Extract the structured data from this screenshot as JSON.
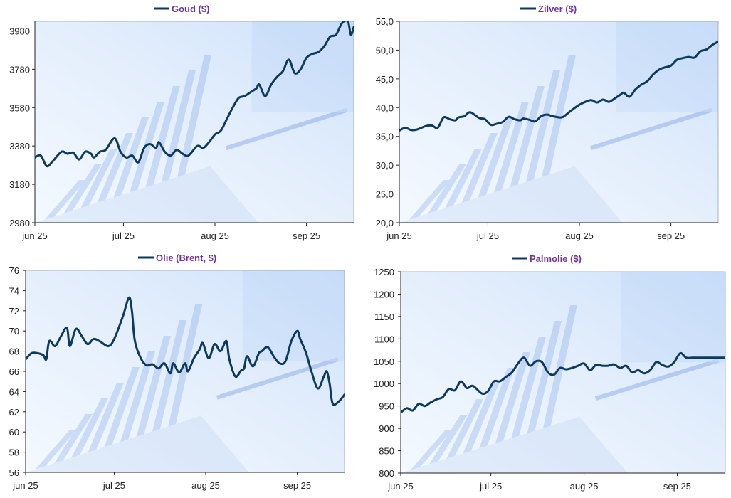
{
  "colors": {
    "line": "#0d3a5c",
    "title": "#7030a0",
    "axis": "#222222",
    "bg_light": "#f4f9ff",
    "bg_blue": "#cfe2fb",
    "bg_bar": "#6f9be6"
  },
  "chart_data": [
    {
      "type": "line",
      "title": "Goud ($)",
      "legend_label": "Goud ($)",
      "x_ticks": [
        "jun 25",
        "jul 25",
        "aug 25",
        "sep 25"
      ],
      "x_tick_pos": [
        0,
        30,
        61,
        92
      ],
      "x_range": [
        0,
        108
      ],
      "y_ticks": [
        "2980",
        "3180",
        "3380",
        "3580",
        "3780",
        "3980"
      ],
      "ylim": [
        2980,
        4030
      ],
      "series": [
        {
          "name": "Goud ($)",
          "x": [
            0,
            2,
            4,
            6,
            9,
            11,
            13,
            15,
            17,
            19,
            20,
            22,
            24,
            27,
            29,
            31,
            33,
            35,
            37,
            39,
            41,
            42,
            44,
            46,
            48,
            50,
            52,
            55,
            57,
            59,
            61,
            63,
            65,
            67,
            69,
            71,
            73,
            75,
            76,
            78,
            80,
            82,
            84,
            86,
            88,
            90,
            92,
            94,
            96,
            98,
            100,
            102,
            104,
            106,
            107,
            108
          ],
          "values": [
            3320,
            3330,
            3275,
            3300,
            3350,
            3340,
            3345,
            3310,
            3350,
            3340,
            3320,
            3350,
            3360,
            3420,
            3350,
            3320,
            3330,
            3295,
            3370,
            3390,
            3370,
            3400,
            3350,
            3330,
            3360,
            3340,
            3330,
            3380,
            3370,
            3400,
            3440,
            3460,
            3520,
            3580,
            3630,
            3640,
            3660,
            3680,
            3700,
            3640,
            3700,
            3740,
            3770,
            3830,
            3760,
            3780,
            3840,
            3860,
            3870,
            3900,
            3950,
            3960,
            4020,
            4030,
            3960,
            4000
          ]
        }
      ]
    },
    {
      "type": "line",
      "title": "Zilver ($)",
      "legend_label": "Zilver ($)",
      "x_ticks": [
        "jun 25",
        "jul 25",
        "aug 25",
        "sep 25"
      ],
      "x_tick_pos": [
        0,
        30,
        61,
        92
      ],
      "x_range": [
        0,
        108
      ],
      "y_ticks": [
        "20,0",
        "25,0",
        "30,0",
        "35,0",
        "40,0",
        "45,0",
        "50,0",
        "55,0"
      ],
      "ylim": [
        20,
        55
      ],
      "series": [
        {
          "name": "Zilver ($)",
          "x": [
            0,
            2,
            4,
            6,
            9,
            11,
            13,
            15,
            17,
            19,
            20,
            22,
            24,
            27,
            29,
            31,
            33,
            35,
            37,
            39,
            41,
            42,
            44,
            46,
            48,
            50,
            52,
            55,
            57,
            59,
            61,
            63,
            65,
            67,
            69,
            71,
            73,
            75,
            76,
            78,
            80,
            82,
            84,
            86,
            88,
            90,
            92,
            94,
            96,
            98,
            100,
            102,
            104,
            106,
            107,
            108
          ],
          "values": [
            36.0,
            36.5,
            36.1,
            36.2,
            36.8,
            36.9,
            36.5,
            38.3,
            38.0,
            37.8,
            38.3,
            38.5,
            39.2,
            38.2,
            38.0,
            37.0,
            37.2,
            37.5,
            38.4,
            38.0,
            37.8,
            38.1,
            37.9,
            37.6,
            38.5,
            38.8,
            38.5,
            38.3,
            39.0,
            39.8,
            40.5,
            41.0,
            41.3,
            40.9,
            41.4,
            41.0,
            41.6,
            42.3,
            42.6,
            41.9,
            43.2,
            44.0,
            44.6,
            45.8,
            46.6,
            47.0,
            47.3,
            48.3,
            48.6,
            48.8,
            48.7,
            49.8,
            50.1,
            50.9,
            51.2,
            51.5
          ]
        }
      ]
    },
    {
      "type": "line",
      "title": "Olie (Brent, $)",
      "legend_label": "Olie (Brent, $)",
      "x_ticks": [
        "jun 25",
        "jul 25",
        "aug 25",
        "sep 25"
      ],
      "x_tick_pos": [
        0,
        30,
        61,
        92
      ],
      "x_range": [
        0,
        108
      ],
      "y_ticks": [
        "56",
        "58",
        "60",
        "62",
        "64",
        "66",
        "68",
        "70",
        "72",
        "74",
        "76"
      ],
      "ylim": [
        56,
        76
      ],
      "series": [
        {
          "name": "Olie (Brent, $)",
          "x": [
            0,
            2,
            4,
            6,
            7,
            8,
            10,
            12,
            14,
            15,
            17,
            19,
            21,
            23,
            25,
            28,
            30,
            33,
            35,
            36,
            37,
            39,
            41,
            43,
            45,
            47,
            49,
            50,
            52,
            54,
            55,
            57,
            59,
            60,
            62,
            64,
            66,
            68,
            69,
            71,
            73,
            74,
            75,
            77,
            79,
            80,
            82,
            84,
            86,
            88,
            90,
            92,
            93,
            95,
            97,
            99,
            101,
            102,
            103,
            104,
            106,
            108
          ],
          "values": [
            67.2,
            67.8,
            67.8,
            67.6,
            67.2,
            69.0,
            68.5,
            69.5,
            70.3,
            68.5,
            70.2,
            69.5,
            68.7,
            69.2,
            69.0,
            68.5,
            69.2,
            71.5,
            73.3,
            72.0,
            69.0,
            67.3,
            66.6,
            66.7,
            66.3,
            66.8,
            65.8,
            66.8,
            65.9,
            66.8,
            66.0,
            67.3,
            68.2,
            68.8,
            67.3,
            68.7,
            68.0,
            69.0,
            67.2,
            65.5,
            66.1,
            66.3,
            67.5,
            66.5,
            67.8,
            68.0,
            68.4,
            67.5,
            66.8,
            67.0,
            69.0,
            70.0,
            69.2,
            67.8,
            65.8,
            64.3,
            65.5,
            66.0,
            64.7,
            62.8,
            63.0,
            63.7
          ]
        }
      ]
    },
    {
      "type": "line",
      "title": "Palmolie ($)",
      "legend_label": "Palmolie ($)",
      "x_ticks": [
        "jun 25",
        "jul 25",
        "aug 25",
        "sep 25"
      ],
      "x_tick_pos": [
        0,
        30,
        61,
        92
      ],
      "x_range": [
        0,
        108
      ],
      "y_ticks": [
        "800",
        "850",
        "900",
        "950",
        "1000",
        "1050",
        "1100",
        "1150",
        "1200",
        "1250"
      ],
      "ylim": [
        800,
        1250
      ],
      "series": [
        {
          "name": "Palmolie ($)",
          "x": [
            0,
            2,
            4,
            6,
            8,
            10,
            12,
            14,
            16,
            18,
            20,
            22,
            24,
            27,
            29,
            31,
            33,
            35,
            37,
            39,
            41,
            43,
            45,
            47,
            49,
            51,
            53,
            55,
            57,
            59,
            61,
            63,
            65,
            67,
            69,
            71,
            73,
            75,
            77,
            79,
            81,
            83,
            85,
            87,
            89,
            91,
            93,
            95,
            97,
            99,
            101,
            103,
            105,
            107,
            108
          ],
          "values": [
            935,
            945,
            940,
            955,
            950,
            958,
            965,
            970,
            988,
            985,
            1005,
            990,
            995,
            978,
            983,
            1005,
            1005,
            1015,
            1025,
            1045,
            1058,
            1040,
            1050,
            1048,
            1025,
            1020,
            1035,
            1032,
            1035,
            1040,
            1045,
            1030,
            1042,
            1040,
            1040,
            1043,
            1035,
            1040,
            1025,
            1030,
            1023,
            1030,
            1048,
            1042,
            1038,
            1048,
            1068,
            1058,
            1058,
            1058,
            1058,
            1058,
            1058,
            1058,
            1058
          ]
        }
      ]
    }
  ]
}
